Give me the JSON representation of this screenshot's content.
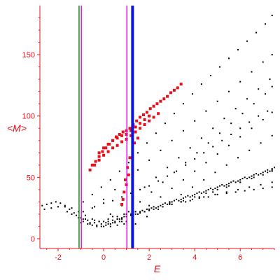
{
  "chart_data": {
    "type": "scatter",
    "title": "",
    "xlabel": "E",
    "ylabel": "<M>",
    "xlim": [
      -2.8,
      7.5
    ],
    "ylim": [
      -8,
      190
    ],
    "x_ticks": [
      -2,
      0,
      2,
      4,
      6
    ],
    "y_ticks": [
      0,
      50,
      100,
      150
    ],
    "grid": false,
    "colors": {
      "axis": "#e8101a",
      "black_points": "#000000",
      "red_points": "#e8101a",
      "green_line": "#1a8a1a",
      "magenta_line": "#e010e0",
      "blue_line": "#0a14e6"
    },
    "vertical_lines": [
      {
        "x": -1.08,
        "color": "green",
        "width": 1.5
      },
      {
        "x": -0.98,
        "color": "magenta",
        "width": 1.5
      },
      {
        "x": 1.02,
        "color": "magenta",
        "width": 1.5
      },
      {
        "x": 1.27,
        "color": "blue",
        "width": 4
      }
    ],
    "series": [
      {
        "marker": "small-dots",
        "color": "black",
        "x": [
          -2.7,
          -2.5,
          -2.3,
          -2.1,
          -1.9,
          -1.7,
          -1.5,
          -1.3,
          -1.1,
          -0.9,
          -0.7,
          -0.5,
          -0.3,
          -0.1,
          0.1,
          0.3,
          0.5,
          0.7,
          0.9,
          -2.6,
          -2.3,
          -2.0,
          -1.7,
          -1.4,
          -1.1,
          -0.8,
          -0.5,
          -0.2,
          0.1,
          0.4,
          0.7,
          -1.6,
          -1.2,
          -0.9,
          -0.6,
          -0.3,
          0.0,
          0.3,
          0.6,
          0.9,
          -1.4,
          -1.0,
          -0.7,
          -0.4,
          -0.1,
          0.2,
          0.5,
          0.8,
          -0.9,
          -0.4,
          0.0,
          0.4,
          0.8,
          1.2,
          1.6,
          2.0,
          2.4,
          2.8,
          3.2,
          3.6,
          4.0,
          4.4,
          4.8,
          5.2,
          5.6,
          6.0,
          6.4,
          6.8,
          7.2,
          -0.9,
          -0.5,
          -0.1,
          0.3,
          0.7,
          1.1,
          1.5,
          1.9,
          2.3,
          2.7,
          3.1,
          3.5,
          3.9,
          4.3,
          4.7,
          5.1,
          5.5,
          5.9,
          6.3,
          6.7,
          7.1,
          7.4,
          -0.5,
          0.0,
          0.5,
          1.0,
          1.5,
          2.0,
          2.5,
          3.0,
          3.5,
          4.0,
          4.5,
          5.0,
          5.5,
          6.0,
          6.5,
          7.0,
          7.4,
          0.3,
          0.8,
          1.3,
          1.8,
          2.3,
          2.8,
          3.3,
          3.8,
          4.3,
          4.8,
          5.3,
          5.8,
          6.3,
          6.8,
          7.3,
          0.6,
          1.1,
          1.6,
          2.1,
          2.6,
          3.1,
          3.6,
          4.1,
          4.6,
          5.1,
          5.6,
          6.1,
          6.6,
          7.1,
          7.4,
          1.0,
          1.5,
          2.0,
          2.5,
          3.0,
          3.5,
          4.0,
          4.5,
          5.0,
          5.5,
          6.0,
          6.5,
          7.0,
          7.4,
          1.4,
          1.9,
          2.4,
          2.9,
          3.4,
          3.9,
          4.4,
          4.9,
          5.4,
          5.9,
          6.4,
          6.9,
          7.4,
          0.2,
          0.6,
          1.0,
          1.4,
          1.8,
          2.2,
          2.6,
          3.0,
          3.4,
          3.8,
          4.2,
          4.6,
          5.0,
          5.4,
          5.8,
          6.2,
          6.6,
          7.0,
          7.4,
          0.4,
          0.9,
          1.4,
          1.9,
          2.4,
          2.9,
          3.4,
          3.9,
          4.4,
          4.9,
          5.4,
          5.9,
          6.4,
          6.9,
          7.4,
          0.8,
          1.3,
          1.8,
          2.3,
          2.8,
          3.3,
          3.8,
          4.3,
          4.8,
          5.3,
          5.8,
          6.3,
          6.8,
          7.3,
          1.2,
          1.7,
          2.2,
          2.7,
          3.2,
          3.7,
          4.2,
          4.7,
          5.2,
          5.7,
          6.2,
          6.7,
          7.2,
          1.6,
          2.1,
          2.6,
          3.1,
          3.6,
          4.1,
          4.6,
          5.1,
          5.6,
          6.1,
          6.6,
          7.1,
          7.5,
          2.0,
          2.5,
          3.0,
          3.5,
          4.0,
          4.5,
          5.0,
          5.5,
          6.0,
          6.5,
          7.0,
          7.4,
          2.4,
          2.9,
          3.4,
          3.9,
          4.4,
          4.9,
          5.4,
          5.9,
          6.4,
          6.9,
          7.4,
          3.0,
          3.5,
          4.0,
          4.5,
          5.0,
          5.5,
          6.0,
          6.5,
          7.0,
          7.4,
          3.6,
          4.2,
          4.8,
          5.4,
          6.0,
          6.6,
          7.2,
          -1.0,
          -0.6,
          -0.2,
          0.2,
          0.6,
          1.0,
          1.4,
          -0.8,
          -0.4,
          0.0,
          0.4,
          0.8,
          1.2,
          1.6,
          2.0
        ],
        "y": [
          27,
          28,
          29,
          30,
          29,
          27,
          24,
          21,
          17,
          14,
          12,
          11,
          10,
          10,
          11,
          12,
          14,
          16,
          18,
          24,
          25,
          26,
          26,
          25,
          22,
          19,
          16,
          14,
          13,
          13,
          14,
          22,
          19,
          16,
          13,
          11,
          10,
          10,
          11,
          12,
          20,
          17,
          15,
          13,
          12,
          12,
          13,
          14,
          22,
          26,
          29,
          31,
          34,
          37,
          40,
          43,
          47,
          51,
          55,
          60,
          65,
          70,
          75,
          80,
          85,
          90,
          95,
          100,
          104,
          30,
          36,
          42,
          48,
          55,
          62,
          70,
          78,
          86,
          94,
          102,
          110,
          118,
          126,
          133,
          140,
          147,
          154,
          161,
          168,
          175,
          182,
          25,
          32,
          40,
          48,
          56,
          64,
          72,
          80,
          88,
          96,
          104,
          112,
          120,
          128,
          136,
          144,
          150,
          20,
          27,
          34,
          42,
          50,
          58,
          66,
          74,
          82,
          90,
          98,
          106,
          114,
          122,
          130,
          16,
          22,
          30,
          38,
          46,
          54,
          62,
          70,
          78,
          86,
          94,
          102,
          110,
          118,
          124,
          14,
          20,
          27,
          34,
          41,
          48,
          55,
          62,
          69,
          76,
          83,
          90,
          97,
          103,
          12,
          18,
          24,
          30,
          36,
          42,
          48,
          54,
          60,
          66,
          72,
          78,
          84,
          14,
          16,
          18,
          20,
          22,
          24,
          26,
          28,
          30,
          31,
          33,
          34,
          36,
          37,
          38,
          39,
          40,
          41,
          42,
          18,
          20,
          22,
          24,
          26,
          28,
          30,
          32,
          34,
          36,
          38,
          40,
          42,
          44,
          46,
          16,
          19,
          22,
          25,
          28,
          31,
          34,
          37,
          40,
          43,
          46,
          49,
          52,
          55,
          20,
          23,
          26,
          29,
          32,
          35,
          38,
          41,
          44,
          47,
          50,
          53,
          56,
          22,
          25,
          28,
          31,
          34,
          37,
          40,
          43,
          46,
          49,
          52,
          55,
          58,
          24,
          27,
          30,
          33,
          36,
          39,
          42,
          45,
          48,
          51,
          54,
          57,
          26,
          29,
          32,
          35,
          38,
          41,
          44,
          47,
          50,
          53,
          56,
          28,
          31,
          34,
          37,
          40,
          43,
          46,
          49,
          52,
          55,
          30,
          34,
          38,
          42,
          46,
          50,
          54,
          13,
          12,
          14,
          16,
          18,
          20,
          22,
          16,
          15,
          14,
          15,
          17,
          19,
          21,
          23
        ]
      },
      {
        "marker": "large-dots",
        "color": "red",
        "x": [
          -0.5,
          -0.35,
          -0.2,
          -0.05,
          0.1,
          0.25,
          0.4,
          0.55,
          0.7,
          0.85,
          1.0,
          1.15,
          1.3,
          1.45,
          1.6,
          1.75,
          1.9,
          2.05,
          2.2,
          2.35,
          2.5,
          2.65,
          2.8,
          2.95,
          3.1,
          3.25,
          3.4,
          -0.6,
          -0.4,
          -0.2,
          0.0,
          0.2,
          0.4,
          0.6,
          0.8,
          1.0,
          1.2,
          1.4,
          1.6,
          1.8,
          2.0,
          2.2,
          2.4,
          -0.2,
          0.0,
          0.2,
          0.4,
          0.6,
          0.8,
          1.0,
          1.2,
          1.4,
          1.6,
          1.8,
          2.0,
          0.8,
          0.9,
          1.0,
          1.1,
          0.85,
          0.95,
          1.05,
          1.15,
          1.35,
          1.5
        ],
        "y": [
          60,
          63,
          67,
          71,
          74,
          77,
          80,
          83,
          85,
          87,
          88,
          90,
          93,
          96,
          99,
          101,
          103,
          106,
          108,
          110,
          112,
          114,
          116,
          119,
          121,
          123,
          126,
          56,
          60,
          64,
          68,
          71,
          74,
          76,
          79,
          81,
          84,
          87,
          90,
          93,
          96,
          99,
          102,
          70,
          74,
          77,
          80,
          82,
          84,
          85,
          88,
          91,
          94,
          97,
          100,
          28,
          38,
          44,
          52,
          32,
          48,
          58,
          66,
          78,
          82
        ]
      }
    ]
  }
}
